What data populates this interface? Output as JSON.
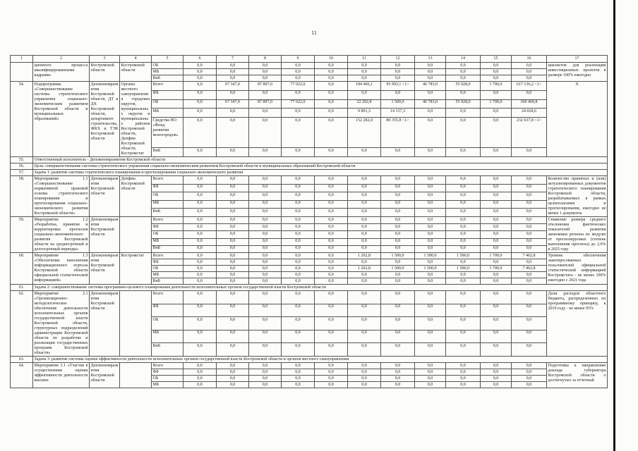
{
  "page": {
    "number": "11"
  },
  "colors": {
    "paper": "#fcfcf9",
    "ink": "#242424",
    "border": "#555555"
  },
  "table": {
    "column_numbers": [
      "1",
      "2",
      "3",
      "4",
      "5",
      "6",
      "7",
      "8",
      "9",
      "10",
      "11",
      "12",
      "13",
      "14",
      "15",
      "16",
      "17"
    ],
    "carryover_row": {
      "num": "",
      "name": "ционного процесса квалифицированными кадрами»",
      "executor": "Костромской области",
      "participants": "Костромской области",
      "expected": "циалистов для реализации инвестиционных проектов в размере 100% ежегодно",
      "budget_lines": [
        {
          "label": "ОБ",
          "values": [
            "0,0",
            "0,0",
            "0,0",
            "0,0",
            "0,0",
            "0,0",
            "0,0",
            "0,0",
            "0,0",
            "0,0",
            "0,0"
          ]
        },
        {
          "label": "МБ",
          "values": [
            "0,0",
            "0,0",
            "0,0",
            "0,0",
            "0,0",
            "0,0",
            "0,0",
            "0,0",
            "0,0",
            "0,0",
            "0,0"
          ]
        },
        {
          "label": "ВнБ",
          "values": [
            "0,0",
            "0,0",
            "0,0",
            "0,0",
            "0,0",
            "0,0",
            "0,0",
            "0,0",
            "0,0",
            "0,0",
            "0,0"
          ]
        }
      ]
    },
    "rows": [
      {
        "type": "program",
        "num": "54.",
        "name": "Подпрограмма «Совершенствование системы стратегического управления социально-экономическим развитием Костромской области и муниципальных образований»",
        "executor": "Депэкономразвития Костромской области, ДТ и ДХ Костромской области, департамент строительства, ЖКХ и ТЭК Костромской области",
        "participants": "Органы местного самоуправления городских округов, муниципальных округов и муниципальных районов Костромской области, Депфин Костромской области, Костромстат",
        "expected": "X",
        "budget_lines": [
          {
            "label": "Всего",
            "values": [
              "0,0",
              "67 347,0",
              "87 897,0",
              "77 022,0",
              "0,0",
              "184 466,1",
              "95 993,1 <1>",
              "46 783,0",
              "55 928,0",
              "1 700,0",
              "617 136,2 <1>"
            ]
          },
          {
            "label": "ФБ",
            "values": [
              "0,0",
              "0,0",
              "0,0",
              "0,0",
              "0,0",
              "0,0",
              "0,0",
              "0,0",
              "0,0",
              "0,0",
              "0,0"
            ]
          },
          {
            "label": "ОБ",
            "values": [
              "0,0",
              "67 347,0",
              "87 897,0",
              "77 022,0",
              "0,0",
              "22 292,8",
              "1 500,0",
              "46 783,0",
              "55 928,0",
              "1 700,0",
              "360 469,8"
            ]
          },
          {
            "label": "МБ",
            "values": [
              "0,0",
              "0,0",
              "0,0",
              "0,0",
              "0,0",
              "9 891,3",
              "14 137,3",
              "0,0",
              "0,0",
              "0,0",
              "24 028,6"
            ]
          },
          {
            "label": "Средства НО «Фонд развития моногородов»",
            "values": [
              "0,0",
              "0,0",
              "0,0",
              "0,0",
              "0,0",
              "152 282,0",
              "80 355,8 <1>",
              "0,0",
              "0,0",
              "0,0",
              "232 637,8 <1>"
            ]
          },
          {
            "label": "ВнБ",
            "values": [
              "0,0",
              "0,0",
              "0,0",
              "0,0",
              "0,0",
              "0,0",
              "0,0",
              "0,0",
              "0,0",
              "0,0",
              "0,0"
            ]
          }
        ]
      },
      {
        "type": "span",
        "num": "55.",
        "text": "Ответственный исполнитель - Депэкономразвития Костромской области"
      },
      {
        "type": "span",
        "num": "56.",
        "text": "Цель: совершенствование системы стратегического управления социально-экономическим развитием Костромской области и муниципальных образований Костромской области"
      },
      {
        "type": "span",
        "num": "57.",
        "text": "Задача 1: развитие системы стратегического планирования и прогнозирования социально-экономического развития"
      },
      {
        "type": "program",
        "num": "58.",
        "name": "Мероприятие 1.1 «Совершенствование нормативной правовой основы стратегического планирования и прогнозирования социально-экономического развития Костромской области»",
        "executor": "Депэкономразвития Костромской области",
        "participants": "Депфин Костромской области",
        "expected": "Количество принятых и (или) актуализированных документов стратегического планирования Костромской области, разрабатываемых в рамках целеполагания и прогнозирования, ежегодно не менее 1 документа",
        "budget_lines": [
          {
            "label": "Всего",
            "values": [
              "0,0",
              "0,0",
              "0,0",
              "0,0",
              "0,0",
              "0,0",
              "0,0",
              "0,0",
              "0,0",
              "0,0",
              "0,0"
            ]
          },
          {
            "label": "ФБ",
            "values": [
              "0,0",
              "0,0",
              "0,0",
              "0,0",
              "0,0",
              "0,0",
              "0,0",
              "0,0",
              "0,0",
              "0,0",
              "0,0"
            ]
          },
          {
            "label": "ОБ",
            "values": [
              "0,0",
              "0,0",
              "0,0",
              "0,0",
              "0,0",
              "0,0",
              "0,0",
              "0,0",
              "0,0",
              "0,0",
              "0,0"
            ]
          },
          {
            "label": "МБ",
            "values": [
              "0,0",
              "0,0",
              "0,0",
              "0,0",
              "0,0",
              "0,0",
              "0,0",
              "0,0",
              "0,0",
              "0,0",
              "0,0"
            ]
          },
          {
            "label": "ВнБ",
            "values": [
              "0,0",
              "0,0",
              "0,0",
              "0,0",
              "0,0",
              "0,0",
              "0,0",
              "0,0",
              "0,0",
              "0,0",
              "0,0"
            ]
          }
        ]
      },
      {
        "type": "program",
        "num": "59.",
        "name": "Мероприятие 1.2 «Разработка, принятие и корректировка прогнозов социально-экономического развития Костромской области на среднесрочный и долгосрочный периоды»",
        "executor": "Депэкономразвития Костромской области",
        "participants": "",
        "expected": "Снижение размера среднего отклонения фактических показателей развития экономики региона по модулю от прогнозируемых (степень выполнения прогноза) до 2,0% к 2025 году",
        "budget_lines": [
          {
            "label": "Всего",
            "values": [
              "0,0",
              "0,0",
              "0,0",
              "0,0",
              "0,0",
              "0,0",
              "0,0",
              "0,0",
              "0,0",
              "0,0",
              "0,0"
            ]
          },
          {
            "label": "ФБ",
            "values": [
              "0,0",
              "0,0",
              "0,0",
              "0,0",
              "0,0",
              "0,0",
              "0,0",
              "0,0",
              "0,0",
              "0,0",
              "0,0"
            ]
          },
          {
            "label": "ОБ",
            "values": [
              "0,0",
              "0,0",
              "0,0",
              "0,0",
              "0,0",
              "0,0",
              "0,0",
              "0,0",
              "0,0",
              "0,0",
              "0,0"
            ]
          },
          {
            "label": "МБ",
            "values": [
              "0,0",
              "0,0",
              "0,0",
              "0,0",
              "0,0",
              "0,0",
              "0,0",
              "0,0",
              "0,0",
              "0,0",
              "0,0"
            ]
          },
          {
            "label": "ВнБ",
            "values": [
              "0,0",
              "0,0",
              "0,0",
              "0,0",
              "0,0",
              "0,0",
              "0,0",
              "0,0",
              "0,0",
              "0,0",
              "0,0"
            ]
          }
        ]
      },
      {
        "type": "program",
        "num": "60.",
        "name": "Мероприятие 1.3 «Обеспечение наполнения информационного портала Костромской области официальной статистической информацией»",
        "executor": "Депэкономразвития Костромской области",
        "participants": "Костромстат",
        "expected": "Уровень обеспечения заинтересованных пользователей официальной статистической информацией Костромстата - не менее 100% ежегодно с 2021 года",
        "budget_lines": [
          {
            "label": "Всего",
            "values": [
              "0,0",
              "0,0",
              "0,0",
              "0,0",
              "0,0",
              "1 262,8",
              "1 500,0",
              "1 500,0",
              "1 500,0",
              "1 700,0",
              "7 462,8"
            ]
          },
          {
            "label": "ФБ",
            "values": [
              "0,0",
              "0,0",
              "0,0",
              "0,0",
              "0,0",
              "0,0",
              "0,0",
              "0,0",
              "0,0",
              "0,0",
              "0,0"
            ]
          },
          {
            "label": "ОБ",
            "values": [
              "0,0",
              "0,0",
              "0,0",
              "0,0",
              "0,0",
              "1 262,8",
              "1 500,0",
              "1 500,0",
              "1 500,0",
              "1 700,0",
              "7 462,8"
            ]
          },
          {
            "label": "МБ",
            "values": [
              "0,0",
              "0,0",
              "0,0",
              "0,0",
              "0,0",
              "0,0",
              "0,0",
              "0,0",
              "0,0",
              "0,0",
              "0,0"
            ]
          },
          {
            "label": "ВнБ",
            "values": [
              "0,0",
              "0,0",
              "0,0",
              "0,0",
              "0,0",
              "0,0",
              "0,0",
              "0,0",
              "0,0",
              "0,0",
              "0,0"
            ]
          }
        ]
      },
      {
        "type": "span",
        "num": "61.",
        "text": "Задача 2: совершенствование системы программно-целевого планирования деятельности исполнительных органов государственной власти Костромской области"
      },
      {
        "type": "program",
        "num": "62.",
        "name": "Мероприятие 2.1 «Организационно-методологическое обеспечение деятельности исполнительных органов государственной власти Костромской области, структурных подразделений администрации Костромской области по разработке и реализации государственных программ Костромской области»",
        "executor": "Депэкономразвития Костромской области",
        "participants": "",
        "expected": "Доля расходов областного бюджета, распределенных по программному принципу, к 2019 году - не менее 95%",
        "budget_lines": [
          {
            "label": "Всего",
            "values": [
              "0,0",
              "0,0",
              "0,0",
              "0,0",
              "0,0",
              "0,0",
              "0,0",
              "0,0",
              "0,0",
              "0,0",
              "0,0"
            ]
          },
          {
            "label": "ФБ",
            "values": [
              "0,0",
              "0,0",
              "0,0",
              "0,0",
              "0,0",
              "0,0",
              "0,0",
              "0,0",
              "0,0",
              "0,0",
              "0,0"
            ]
          },
          {
            "label": "ОБ",
            "values": [
              "0,0",
              "0,0",
              "0,0",
              "0,0",
              "0,0",
              "0,0",
              "0,0",
              "0,0",
              "0,0",
              "0,0",
              "0,0"
            ]
          },
          {
            "label": "МБ",
            "values": [
              "0,0",
              "0,0",
              "0,0",
              "0,0",
              "0,0",
              "0,0",
              "0,0",
              "0,0",
              "0,0",
              "0,0",
              "0,0"
            ]
          },
          {
            "label": "ВнБ",
            "values": [
              "0,0",
              "0,0",
              "0,0",
              "0,0",
              "0,0",
              "0,0",
              "0,0",
              "0,0",
              "0,0",
              "0,0",
              "0,0"
            ]
          }
        ]
      },
      {
        "type": "span",
        "num": "63.",
        "text": "Задача 3: развитие системы оценки эффективности деятельности исполнительных органов государственной власти Костромской области и органов местного самоуправления"
      },
      {
        "type": "program",
        "num": "64.",
        "name": "Мероприятие 3.1 «Участие в осуществлении оценки эффективности деятельности высших",
        "executor": "Депэкономразвития Костромской области",
        "participants": "",
        "expected": "Подготовка к направлению доклада губернатора Костромской области о достигнутых за отчетный",
        "budget_lines": [
          {
            "label": "Всего",
            "values": [
              "0,0",
              "0,0",
              "0,0",
              "0,0",
              "0,0",
              "0,0",
              "0,0",
              "0,0",
              "0,0",
              "0,0",
              "0,0"
            ]
          },
          {
            "label": "ФБ",
            "values": [
              "0,0",
              "0,0",
              "0,0",
              "0,0",
              "0,0",
              "0,0",
              "0,0",
              "0,0",
              "0,0",
              "0,0",
              "0,0"
            ]
          },
          {
            "label": "ОБ",
            "values": [
              "0,0",
              "0,0",
              "0,0",
              "0,0",
              "0,0",
              "0,0",
              "0,0",
              "0,0",
              "0,0",
              "0,0",
              "0,0"
            ]
          },
          {
            "label": "МБ",
            "values": [
              "0,0",
              "0,0",
              "0,0",
              "0,0",
              "0,0",
              "0,0",
              "0,0",
              "0,0",
              "0,0",
              "0,0",
              "0,0"
            ]
          }
        ]
      }
    ]
  }
}
